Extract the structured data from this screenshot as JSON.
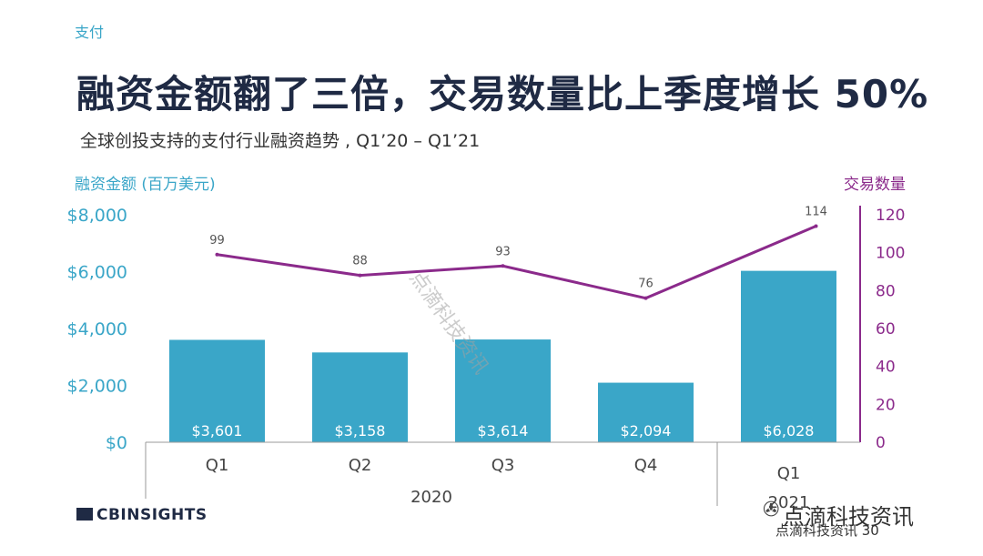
{
  "section_tag": "支付",
  "title": "融资金额翻了三倍，交易数量比上季度增长 50%",
  "subtitle": "全球创投支持的支付行业融资趋势 , Q1’20 –  Q1’21",
  "brand": "CBINSIGHTS",
  "watermark": "点滴科技资讯",
  "footer_text": "点滴科技资讯 30",
  "chart_data": {
    "type": "bar",
    "title": "",
    "y_left_label": "融资金额 (百万美元)",
    "y_right_label": "交易数量",
    "y_left_ticks": [
      "$0",
      "$2,000",
      "$4,000",
      "$6,000",
      "$8,000"
    ],
    "y_right_ticks": [
      "0",
      "20",
      "40",
      "60",
      "80",
      "100",
      "120"
    ],
    "ylim_left": [
      0,
      8000
    ],
    "ylim_right": [
      0,
      120
    ],
    "categories": [
      "Q1",
      "Q2",
      "Q3",
      "Q4",
      "Q1"
    ],
    "year_groups": [
      {
        "label": "2020",
        "span": 4
      },
      {
        "label": "2021",
        "span": 1
      }
    ],
    "series": [
      {
        "name": "融资金额",
        "kind": "bar",
        "axis": "left",
        "color": "#3aa6c8",
        "values": [
          3601,
          3158,
          3614,
          2094,
          6028
        ],
        "labels": [
          "$3,601",
          "$3,158",
          "$3,614",
          "$2,094",
          "$6,028"
        ]
      },
      {
        "name": "交易数量",
        "kind": "line",
        "axis": "right",
        "color": "#8b2a8b",
        "values": [
          99,
          88,
          93,
          76,
          114
        ],
        "labels": [
          "99",
          "88",
          "93",
          "76",
          "114"
        ]
      }
    ],
    "grid": false
  }
}
